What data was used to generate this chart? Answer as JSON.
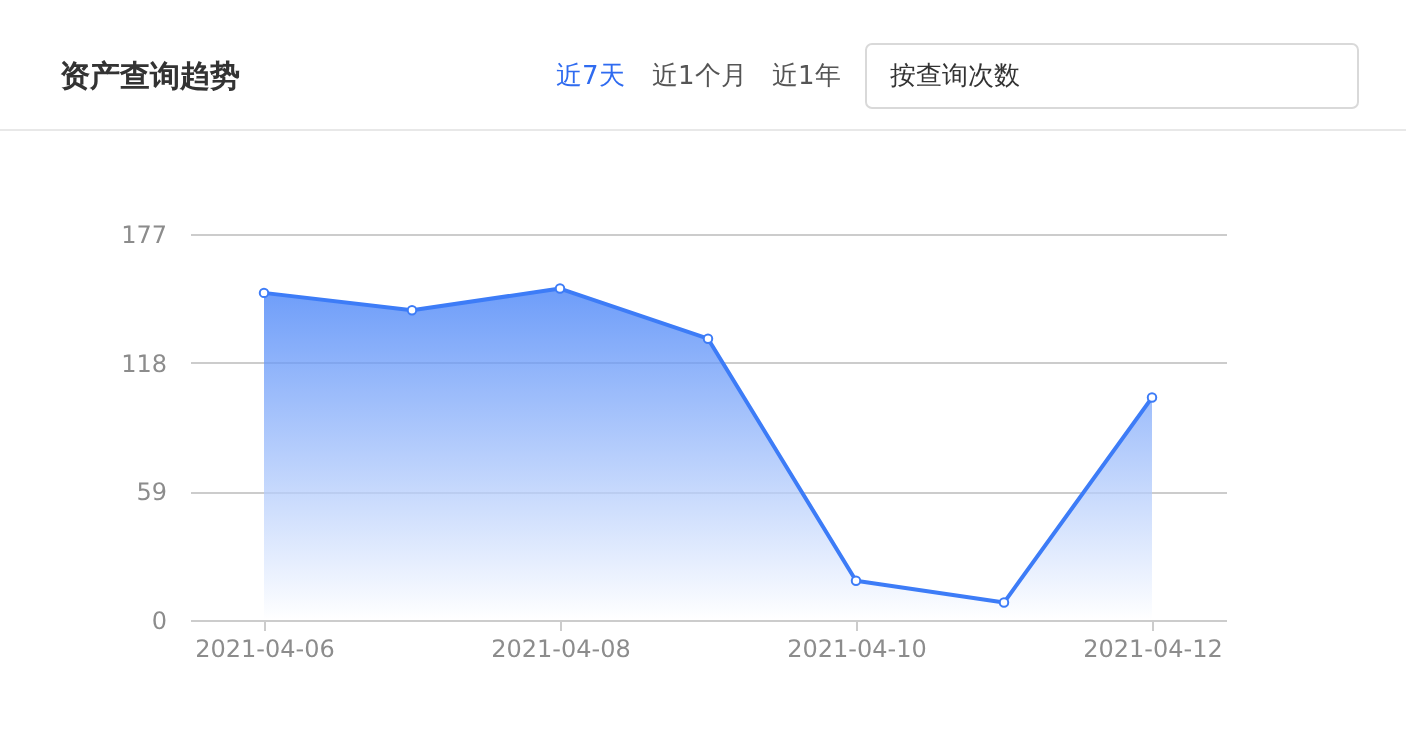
{
  "chart_data": {
    "type": "area",
    "title": "资产查询趋势",
    "annotations": [
      "近7天",
      "近1个月",
      "近1年",
      "按查询次数"
    ],
    "x": [
      "2021-04-06",
      "2021-04-07",
      "2021-04-08",
      "2021-04-09",
      "2021-04-10",
      "2021-04-11",
      "2021-04-12"
    ],
    "series": [
      {
        "color": "#3d7cf7",
        "values": [
          150,
          142,
          152,
          129,
          18,
          8,
          102
        ]
      }
    ],
    "xlim": [
      "2021-04-05T12:00",
      "2021-04-12T12:00"
    ],
    "xticks": [
      {
        "value": "2021-04-06",
        "label": "2021-04-06"
      },
      {
        "value": "2021-04-08",
        "label": "2021-04-08"
      },
      {
        "value": "2021-04-10",
        "label": "2021-04-10"
      },
      {
        "value": "2021-04-12",
        "label": "2021-04-12"
      }
    ],
    "ylim": [
      0,
      177
    ],
    "yticks": [
      0,
      59,
      118,
      177
    ],
    "grid": "y",
    "marker": "circle"
  }
}
